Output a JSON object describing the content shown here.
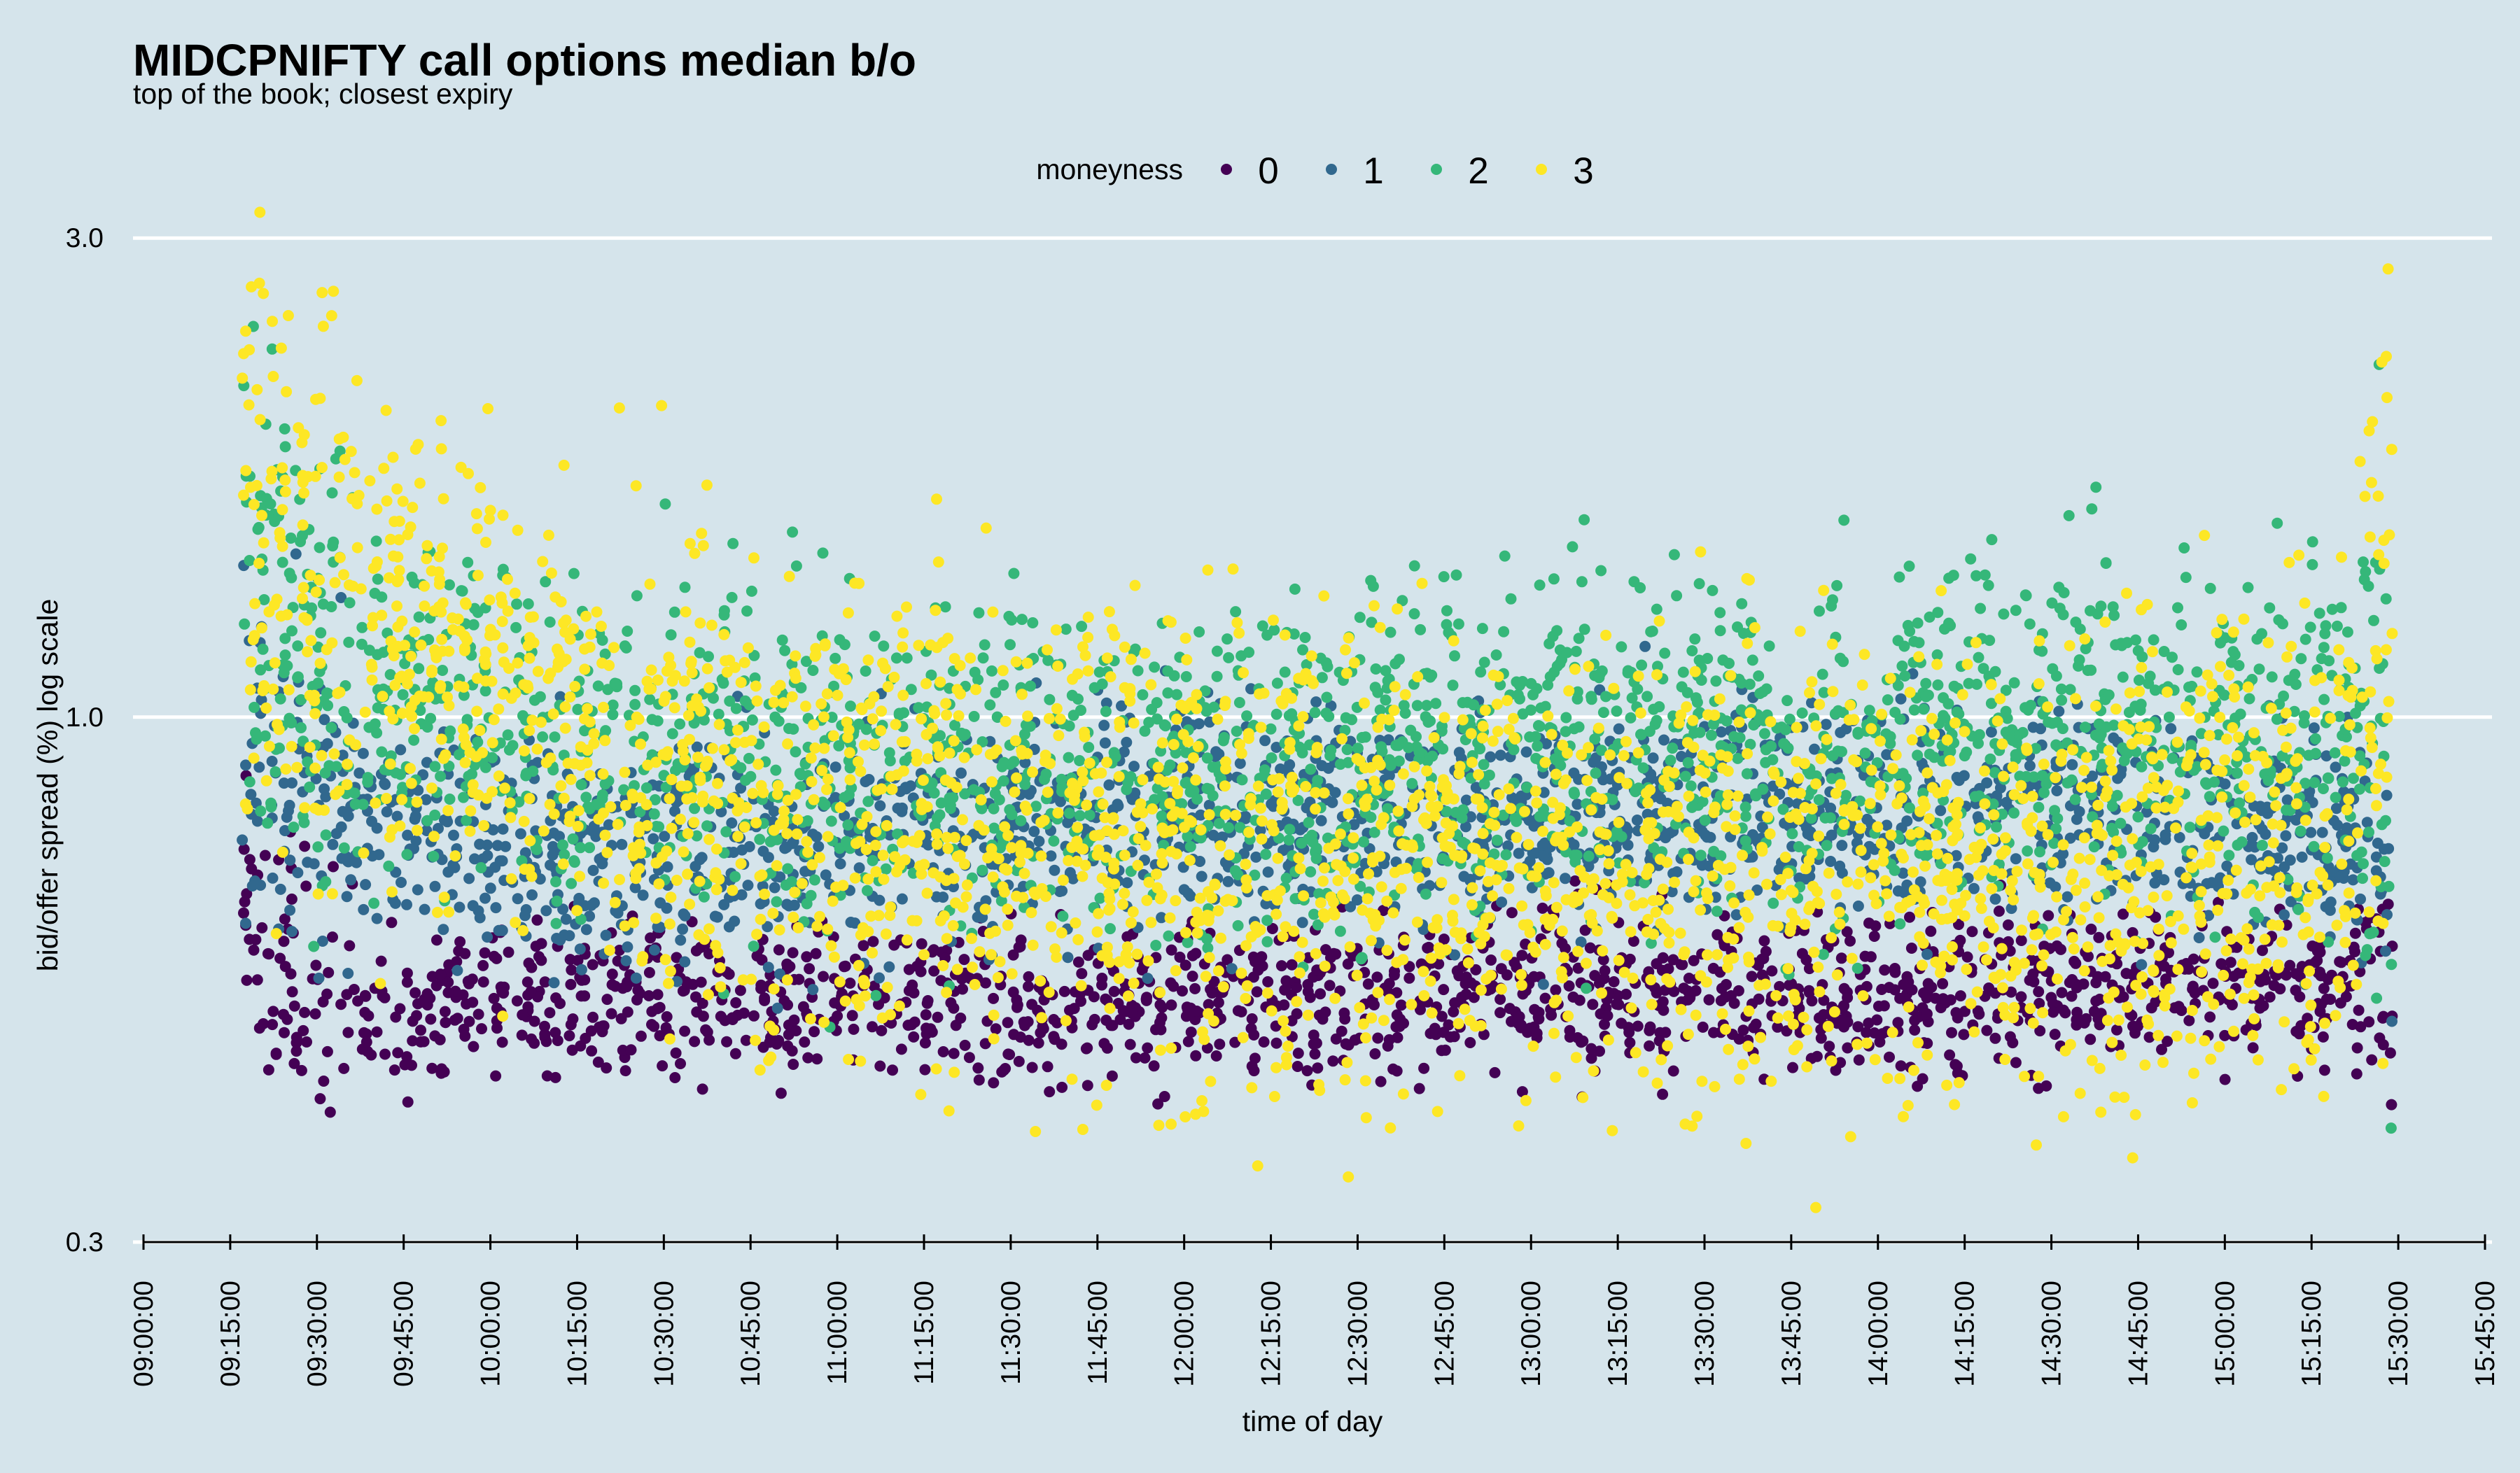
{
  "chart_data": {
    "type": "scatter",
    "title": "MIDCPNIFTY call options median b/o",
    "subtitle": "top of the book; closest expiry",
    "xlabel": "time of day",
    "ylabel": "bid/offer spread (%) log scale",
    "y_scale": "log",
    "ylim": [
      0.3,
      3.2
    ],
    "xlim": [
      "09:00:00",
      "15:45:00"
    ],
    "grid": "horizontal major lines only",
    "legend": {
      "title": "moneyness",
      "position": "top"
    },
    "x_ticks": [
      "09:00:00",
      "09:15:00",
      "09:30:00",
      "09:45:00",
      "10:00:00",
      "10:15:00",
      "10:30:00",
      "10:45:00",
      "11:00:00",
      "11:15:00",
      "11:30:00",
      "11:45:00",
      "12:00:00",
      "12:15:00",
      "12:30:00",
      "12:45:00",
      "13:00:00",
      "13:15:00",
      "13:30:00",
      "13:45:00",
      "14:00:00",
      "14:15:00",
      "14:30:00",
      "14:45:00",
      "15:00:00",
      "15:15:00",
      "15:30:00",
      "15:45:00"
    ],
    "y_ticks": [
      {
        "value": 0.3,
        "label": "0.3"
      },
      {
        "value": 1.0,
        "label": "1.0"
      },
      {
        "value": 3.0,
        "label": "3.0"
      }
    ],
    "series": [
      {
        "name": "0",
        "color": "#440154",
        "x": [
          "09:17:00",
          "09:20:00",
          "09:30:00",
          "09:45:00",
          "10:00:00",
          "10:15:00",
          "10:30:00",
          "10:45:00",
          "11:00:00",
          "11:15:00",
          "11:30:00",
          "11:45:00",
          "12:00:00",
          "12:15:00",
          "12:30:00",
          "12:45:00",
          "13:00:00",
          "13:15:00",
          "13:30:00",
          "13:45:00",
          "14:00:00",
          "14:15:00",
          "14:30:00",
          "14:45:00",
          "15:00:00",
          "15:15:00",
          "15:25:00",
          "15:29:00"
        ],
        "y": [
          0.72,
          0.55,
          0.53,
          0.52,
          0.53,
          0.53,
          0.53,
          0.52,
          0.52,
          0.52,
          0.51,
          0.51,
          0.52,
          0.52,
          0.53,
          0.53,
          0.53,
          0.53,
          0.53,
          0.53,
          0.53,
          0.53,
          0.54,
          0.54,
          0.54,
          0.54,
          0.53,
          0.51
        ]
      },
      {
        "name": "1",
        "color": "#31688e",
        "x": [
          "09:17:00",
          "09:20:00",
          "09:30:00",
          "09:45:00",
          "10:00:00",
          "10:15:00",
          "10:30:00",
          "10:45:00",
          "11:00:00",
          "11:15:00",
          "11:30:00",
          "11:45:00",
          "12:00:00",
          "12:15:00",
          "12:30:00",
          "12:45:00",
          "13:00:00",
          "13:15:00",
          "13:30:00",
          "13:45:00",
          "14:00:00",
          "14:15:00",
          "14:30:00",
          "14:45:00",
          "15:00:00",
          "15:15:00",
          "15:25:00",
          "15:29:00"
        ],
        "y": [
          0.95,
          0.9,
          0.82,
          0.77,
          0.75,
          0.74,
          0.74,
          0.75,
          0.76,
          0.77,
          0.78,
          0.79,
          0.8,
          0.8,
          0.8,
          0.8,
          0.8,
          0.8,
          0.8,
          0.8,
          0.8,
          0.8,
          0.8,
          0.8,
          0.8,
          0.78,
          0.74,
          0.62
        ]
      },
      {
        "name": "2",
        "color": "#35b779",
        "x": [
          "09:17:00",
          "09:20:00",
          "09:30:00",
          "09:45:00",
          "10:00:00",
          "10:15:00",
          "10:30:00",
          "10:45:00",
          "11:00:00",
          "11:15:00",
          "11:30:00",
          "11:45:00",
          "12:00:00",
          "12:15:00",
          "12:30:00",
          "12:45:00",
          "13:00:00",
          "13:15:00",
          "13:30:00",
          "13:45:00",
          "14:00:00",
          "14:15:00",
          "14:30:00",
          "14:45:00",
          "15:00:00",
          "15:15:00",
          "15:25:00",
          "15:29:00"
        ],
        "y": [
          1.4,
          1.25,
          1.1,
          1.02,
          0.98,
          0.95,
          0.93,
          0.92,
          0.9,
          0.88,
          0.88,
          0.88,
          0.88,
          0.89,
          0.9,
          0.91,
          0.92,
          0.93,
          0.93,
          0.93,
          0.93,
          0.94,
          0.96,
          0.97,
          0.98,
          0.97,
          0.92,
          0.85
        ]
      },
      {
        "name": "3",
        "color": "#fde725",
        "x": [
          "09:17:00",
          "09:20:00",
          "09:30:00",
          "09:45:00",
          "10:00:00",
          "10:15:00",
          "10:30:00",
          "10:45:00",
          "11:00:00",
          "11:15:00",
          "11:30:00",
          "11:45:00",
          "12:00:00",
          "12:15:00",
          "12:30:00",
          "12:45:00",
          "13:00:00",
          "13:15:00",
          "13:30:00",
          "13:45:00",
          "14:00:00",
          "14:15:00",
          "14:30:00",
          "14:45:00",
          "15:00:00",
          "15:15:00",
          "15:25:00",
          "15:29:00"
        ],
        "y": [
          1.9,
          1.6,
          1.35,
          1.2,
          1.1,
          0.98,
          0.92,
          0.85,
          0.8,
          0.76,
          0.74,
          0.74,
          0.74,
          0.74,
          0.74,
          0.73,
          0.72,
          0.71,
          0.7,
          0.7,
          0.7,
          0.7,
          0.7,
          0.71,
          0.72,
          0.74,
          0.9,
          1.4
        ]
      }
    ]
  }
}
